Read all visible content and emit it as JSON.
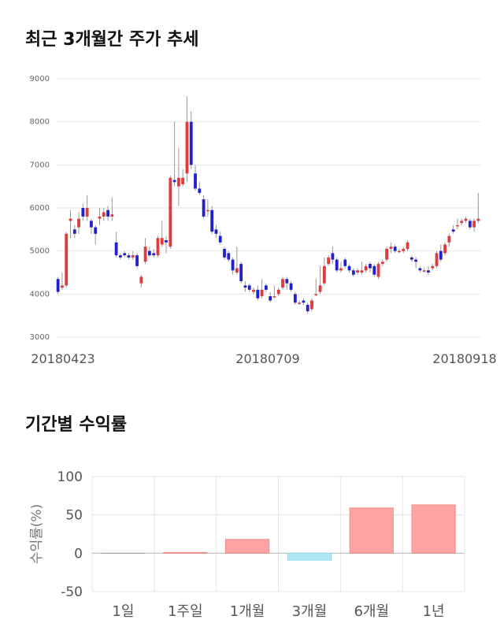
{
  "section1": {
    "title": "최근 3개월간 주가 추세"
  },
  "section2": {
    "title": "기간별 수익률"
  },
  "chart_data": [
    {
      "type": "candlestick",
      "yticks": [
        "9000",
        "8000",
        "7000",
        "6000",
        "5000",
        "4000",
        "3000"
      ],
      "ylim": [
        3000,
        9000
      ],
      "xtick_labels": [
        "20180423",
        "20180709",
        "20180918"
      ],
      "grid": true,
      "colors": {
        "up": "#e03a3a",
        "down": "#2222cc",
        "wick": "#999999"
      },
      "candles": [
        [
          4350,
          4050,
          4400,
          4000
        ],
        [
          4150,
          4200,
          4500,
          4100
        ],
        [
          4200,
          5400,
          5450,
          4150
        ],
        [
          5700,
          5750,
          5950,
          5300
        ],
        [
          5500,
          5400,
          5600,
          5300
        ],
        [
          5550,
          5750,
          5900,
          5400
        ],
        [
          6000,
          5800,
          6100,
          5700
        ],
        [
          5800,
          6000,
          6300,
          5700
        ],
        [
          5700,
          5550,
          5750,
          5400
        ],
        [
          5550,
          5400,
          5600,
          5150
        ],
        [
          5750,
          5800,
          6000,
          5600
        ],
        [
          5800,
          5900,
          6000,
          5700
        ],
        [
          5950,
          5800,
          6050,
          5700
        ],
        [
          5800,
          5850,
          6250,
          5700
        ],
        [
          5200,
          4900,
          5450,
          4850
        ],
        [
          4900,
          4850,
          4950,
          4800
        ],
        [
          4950,
          4900,
          5000,
          4850
        ],
        [
          4900,
          4850,
          4950,
          4800
        ],
        [
          4850,
          4900,
          5000,
          4800
        ],
        [
          4900,
          4650,
          4950,
          4600
        ],
        [
          4250,
          4400,
          4450,
          4150
        ],
        [
          4750,
          5100,
          5300,
          4700
        ],
        [
          5000,
          4900,
          5100,
          4850
        ],
        [
          4950,
          4900,
          5050,
          4850
        ],
        [
          4900,
          5300,
          5350,
          4850
        ],
        [
          5150,
          5300,
          5700,
          5100
        ],
        [
          5250,
          5200,
          5350,
          4950
        ],
        [
          5100,
          6700,
          6750,
          5050
        ],
        [
          6650,
          6600,
          8000,
          6500
        ],
        [
          6500,
          6700,
          7400,
          6050
        ],
        [
          6550,
          6700,
          6900,
          6500
        ],
        [
          6800,
          8000,
          8600,
          6600
        ],
        [
          8000,
          7000,
          8250,
          6900
        ],
        [
          6800,
          6450,
          7000,
          6400
        ],
        [
          6450,
          6350,
          6600,
          6300
        ],
        [
          6200,
          5800,
          6300,
          5750
        ],
        [
          5950,
          5950,
          6200,
          5800
        ],
        [
          5950,
          5450,
          6050,
          5400
        ],
        [
          5500,
          5400,
          5600,
          5300
        ],
        [
          5350,
          5200,
          5450,
          5150
        ],
        [
          5050,
          4850,
          5100,
          4800
        ],
        [
          4950,
          4800,
          5000,
          4750
        ],
        [
          4800,
          4550,
          4850,
          4450
        ],
        [
          4500,
          4600,
          5100,
          4450
        ],
        [
          4700,
          4300,
          4750,
          4250
        ],
        [
          4200,
          4150,
          4300,
          4050
        ],
        [
          4200,
          4100,
          4250,
          4050
        ],
        [
          4050,
          4100,
          4150,
          4000
        ],
        [
          4100,
          3900,
          4200,
          3850
        ],
        [
          3950,
          4100,
          4350,
          3900
        ],
        [
          4200,
          4100,
          4250,
          4050
        ],
        [
          3950,
          3850,
          4050,
          3800
        ],
        [
          3950,
          3950,
          4200,
          3900
        ],
        [
          4000,
          4100,
          4150,
          3950
        ],
        [
          4150,
          4350,
          4400,
          4100
        ],
        [
          4350,
          4250,
          4400,
          4100
        ],
        [
          4250,
          4100,
          4300,
          4050
        ],
        [
          4000,
          3800,
          4050,
          3750
        ],
        [
          3800,
          3800,
          3850,
          3750
        ],
        [
          3850,
          3800,
          3900,
          3750
        ],
        [
          3750,
          3600,
          3800,
          3550
        ],
        [
          3650,
          3850,
          3900,
          3600
        ],
        [
          4000,
          4000,
          4350,
          3950
        ],
        [
          4050,
          4200,
          4650,
          4000
        ],
        [
          4250,
          4650,
          4850,
          4200
        ],
        [
          4700,
          4850,
          4900,
          4650
        ],
        [
          4950,
          4800,
          5100,
          4700
        ],
        [
          4800,
          4550,
          4850,
          4500
        ],
        [
          4550,
          4600,
          4750,
          4500
        ],
        [
          4800,
          4650,
          4850,
          4600
        ],
        [
          4650,
          4550,
          4700,
          4500
        ],
        [
          4550,
          4450,
          4600,
          4400
        ],
        [
          4500,
          4550,
          4600,
          4450
        ],
        [
          4500,
          4550,
          4750,
          4450
        ],
        [
          4550,
          4650,
          4700,
          4500
        ],
        [
          4700,
          4600,
          4750,
          4500
        ],
        [
          4650,
          4450,
          4700,
          4400
        ],
        [
          4400,
          4700,
          4750,
          4350
        ],
        [
          4700,
          4750,
          4800,
          4650
        ],
        [
          4800,
          5050,
          5100,
          4750
        ],
        [
          5050,
          5100,
          5200,
          4950
        ],
        [
          5100,
          5000,
          5150,
          4950
        ],
        [
          5000,
          5000,
          5050,
          4950
        ],
        [
          5000,
          5050,
          5100,
          4950
        ],
        [
          5050,
          5200,
          5250,
          5000
        ],
        [
          4850,
          4800,
          4900,
          4750
        ],
        [
          4800,
          4750,
          4850,
          4600
        ],
        [
          4600,
          4550,
          4650,
          4500
        ],
        [
          4550,
          4550,
          4600,
          4500
        ],
        [
          4550,
          4500,
          4650,
          4450
        ],
        [
          4600,
          4650,
          4700,
          4550
        ],
        [
          4650,
          4950,
          5000,
          4600
        ],
        [
          5000,
          4800,
          5150,
          4750
        ],
        [
          4950,
          5150,
          5200,
          4900
        ],
        [
          5200,
          5350,
          5400,
          5100
        ],
        [
          5500,
          5450,
          5600,
          5400
        ],
        [
          5600,
          5600,
          5750,
          5500
        ],
        [
          5650,
          5700,
          5750,
          5600
        ],
        [
          5700,
          5750,
          5800,
          5650
        ],
        [
          5700,
          5550,
          5750,
          5500
        ],
        [
          5550,
          5700,
          5750,
          5450
        ],
        [
          5700,
          5750,
          6350,
          5650
        ]
      ]
    },
    {
      "type": "bar",
      "categories": [
        "1일",
        "1주일",
        "1개월",
        "3개월",
        "6개월",
        "1년"
      ],
      "values": [
        0,
        1,
        18,
        -9,
        59,
        63
      ],
      "ylabel": "수익률(%)",
      "yticks": [
        "100",
        "50",
        "0",
        "-50"
      ],
      "ylim": [
        -50,
        100
      ],
      "grid": true,
      "colors": {
        "positive": "#ffa3a3",
        "negative": "#aee9f3",
        "zero": "#999999"
      }
    }
  ]
}
